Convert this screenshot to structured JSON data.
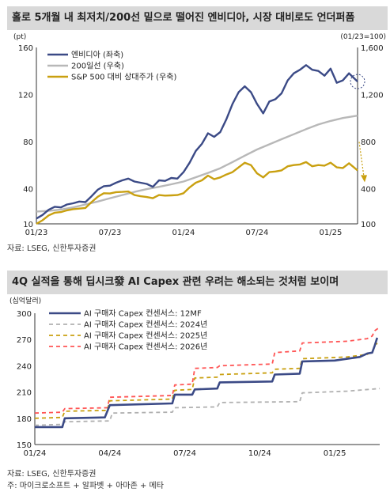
{
  "chart_data": [
    {
      "type": "line",
      "title": "홀로 5개월 내 최저치/200선 밑으로 떨어진 엔비디아, 시장 대비로도 언더퍼폼",
      "ylabel_left": "(pt)",
      "ylabel_right": "(01/23=100)",
      "left_ticks": [
        "160",
        "120",
        "80",
        "40",
        "10"
      ],
      "left_tick_values": [
        160,
        120,
        80,
        40,
        10
      ],
      "right_ticks": [
        "1,600",
        "1,200",
        "800",
        "400",
        "100"
      ],
      "x_ticks": [
        "01/23",
        "07/23",
        "01/24",
        "07/24",
        "01/25"
      ],
      "x_tick_values": [
        0,
        6,
        12,
        18,
        24
      ],
      "x_range_months": [
        0,
        26.2
      ],
      "legend_position": "top-left",
      "series": [
        {
          "name": "엔비디아 (좌축)",
          "color": "#3b4a86",
          "axis": "left",
          "points": [
            [
              0,
              14.5
            ],
            [
              0.5,
              17.5
            ],
            [
              1,
              22
            ],
            [
              1.5,
              24.5
            ],
            [
              2,
              24
            ],
            [
              2.5,
              26.5
            ],
            [
              3,
              27.5
            ],
            [
              3.5,
              29
            ],
            [
              4,
              28.5
            ],
            [
              4.5,
              33.5
            ],
            [
              5,
              39
            ],
            [
              5.5,
              42
            ],
            [
              6,
              42.5
            ],
            [
              6.5,
              45
            ],
            [
              7,
              47
            ],
            [
              7.5,
              48.5
            ],
            [
              8,
              46
            ],
            [
              8.5,
              45
            ],
            [
              9,
              44
            ],
            [
              9.5,
              41.5
            ],
            [
              10,
              47
            ],
            [
              10.5,
              46.5
            ],
            [
              11,
              49
            ],
            [
              11.5,
              48.5
            ],
            [
              12,
              54
            ],
            [
              12.5,
              62
            ],
            [
              13,
              72
            ],
            [
              13.5,
              78
            ],
            [
              14,
              87
            ],
            [
              14.5,
              84
            ],
            [
              15,
              88
            ],
            [
              15.5,
              99
            ],
            [
              16,
              112
            ],
            [
              16.5,
              122
            ],
            [
              17,
              127
            ],
            [
              17.5,
              122
            ],
            [
              18,
              112
            ],
            [
              18.5,
              104
            ],
            [
              19,
              114
            ],
            [
              19.5,
              116
            ],
            [
              20,
              121
            ],
            [
              20.5,
              132
            ],
            [
              21,
              138
            ],
            [
              21.5,
              141
            ],
            [
              22,
              145
            ],
            [
              22.5,
              141
            ],
            [
              23,
              140
            ],
            [
              23.5,
              136
            ],
            [
              24,
              142
            ],
            [
              24.5,
              130
            ],
            [
              25,
              132
            ],
            [
              25.5,
              138
            ],
            [
              26.2,
              131
            ]
          ]
        },
        {
          "name": "200일선 (우축)",
          "color": "#b8b8b8",
          "axis": "right",
          "points": [
            [
              0,
              205
            ],
            [
              1,
              210
            ],
            [
              2,
              222
            ],
            [
              3,
              240
            ],
            [
              4,
              265
            ],
            [
              5,
              290
            ],
            [
              6,
              318
            ],
            [
              7,
              345
            ],
            [
              8,
              372
            ],
            [
              9,
              395
            ],
            [
              10,
              415
            ],
            [
              11,
              436
            ],
            [
              12,
              460
            ],
            [
              13,
              496
            ],
            [
              14,
              533
            ],
            [
              15,
              573
            ],
            [
              16,
              625
            ],
            [
              17,
              680
            ],
            [
              18,
              732
            ],
            [
              19,
              776
            ],
            [
              20,
              820
            ],
            [
              21,
              862
            ],
            [
              22,
              905
            ],
            [
              23,
              945
            ],
            [
              24,
              975
            ],
            [
              25,
              1000
            ],
            [
              26.2,
              1020
            ]
          ]
        },
        {
          "name": "S&P 500 대비 상대주가 (우축)",
          "color": "#c9a010",
          "axis": "right",
          "points": [
            [
              0,
              100
            ],
            [
              0.5,
              130
            ],
            [
              1,
              172
            ],
            [
              1.5,
              195
            ],
            [
              2,
              200
            ],
            [
              2.5,
              215
            ],
            [
              3,
              225
            ],
            [
              3.5,
              230
            ],
            [
              4,
              235
            ],
            [
              4.5,
              285
            ],
            [
              5,
              330
            ],
            [
              5.5,
              360
            ],
            [
              6,
              358
            ],
            [
              6.5,
              370
            ],
            [
              7,
              372
            ],
            [
              7.5,
              375
            ],
            [
              8,
              345
            ],
            [
              8.5,
              335
            ],
            [
              9,
              328
            ],
            [
              9.5,
              318
            ],
            [
              10,
              345
            ],
            [
              10.5,
              340
            ],
            [
              11,
              342
            ],
            [
              11.5,
              345
            ],
            [
              12,
              360
            ],
            [
              12.5,
              410
            ],
            [
              13,
              450
            ],
            [
              13.5,
              470
            ],
            [
              14,
              510
            ],
            [
              14.5,
              480
            ],
            [
              15,
              495
            ],
            [
              15.5,
              520
            ],
            [
              16,
              540
            ],
            [
              16.5,
              580
            ],
            [
              17,
              620
            ],
            [
              17.5,
              600
            ],
            [
              18,
              530
            ],
            [
              18.5,
              495
            ],
            [
              19,
              540
            ],
            [
              19.5,
              545
            ],
            [
              20,
              555
            ],
            [
              20.5,
              590
            ],
            [
              21,
              600
            ],
            [
              21.5,
              605
            ],
            [
              22,
              625
            ],
            [
              22.5,
              590
            ],
            [
              23,
              600
            ],
            [
              23.5,
              595
            ],
            [
              24,
              620
            ],
            [
              24.5,
              580
            ],
            [
              25,
              575
            ],
            [
              25.5,
              615
            ],
            [
              26.2,
              555
            ]
          ]
        }
      ]
    },
    {
      "type": "line",
      "title": "4Q 실적을 통해 딥시크發 AI Capex 관련 우려는 해소되는 것처럼 보이며",
      "ylabel": "(십억달러)",
      "ylim": [
        150,
        300
      ],
      "y_ticks": [
        "300",
        "270",
        "240",
        "210",
        "180",
        "150"
      ],
      "y_tick_values": [
        300,
        270,
        240,
        210,
        180,
        150
      ],
      "x_ticks": [
        "01/24",
        "04/24",
        "07/24",
        "10/24",
        "01/25"
      ],
      "x_tick_values": [
        0,
        3,
        6,
        9,
        12
      ],
      "x_range_months": [
        0,
        13.8
      ],
      "legend_position": "top-left",
      "series": [
        {
          "name": "AI 구매자 Capex 컨센서스: 12MF",
          "color": "#3b4a86",
          "dash": "",
          "points": [
            [
              0,
              170
            ],
            [
              1.1,
              170
            ],
            [
              1.2,
              180
            ],
            [
              2.8,
              181
            ],
            [
              3,
              195
            ],
            [
              5.5,
              197
            ],
            [
              5.6,
              207
            ],
            [
              6.3,
              207
            ],
            [
              6.4,
              213
            ],
            [
              7.3,
              214
            ],
            [
              7.4,
              221
            ],
            [
              9.5,
              222
            ],
            [
              9.6,
              230
            ],
            [
              10.6,
              231
            ],
            [
              10.7,
              245
            ],
            [
              12,
              246
            ],
            [
              13,
              250
            ],
            [
              13.3,
              254
            ],
            [
              13.5,
              255
            ],
            [
              13.6,
              263
            ],
            [
              13.7,
              272
            ]
          ]
        },
        {
          "name": "AI 구매자 Capex 컨센서스: 2024년",
          "color": "#b0b0b0",
          "dash": "5,4",
          "points": [
            [
              0,
              172
            ],
            [
              1.1,
              173
            ],
            [
              1.2,
              176
            ],
            [
              3,
              177
            ],
            [
              3.1,
              186
            ],
            [
              5.5,
              187
            ],
            [
              5.6,
              192
            ],
            [
              7.3,
              193
            ],
            [
              7.4,
              198
            ],
            [
              10.6,
              199
            ],
            [
              10.7,
              209
            ],
            [
              12.5,
              211
            ],
            [
              13.8,
              214
            ]
          ]
        },
        {
          "name": "AI 구매자 Capex 컨센서스: 2025년",
          "color": "#c9a010",
          "dash": "5,4",
          "points": [
            [
              0,
              180
            ],
            [
              1.1,
              181
            ],
            [
              1.2,
              188
            ],
            [
              2.9,
              189
            ],
            [
              3,
              200
            ],
            [
              5.5,
              202
            ],
            [
              5.6,
              212
            ],
            [
              6.3,
              213
            ],
            [
              6.4,
              226
            ],
            [
              7.3,
              227
            ],
            [
              7.4,
              230
            ],
            [
              9.5,
              232
            ],
            [
              9.6,
              236
            ],
            [
              10.6,
              237
            ],
            [
              10.7,
              248
            ],
            [
              12.5,
              250
            ],
            [
              13.3,
              253
            ],
            [
              13.5,
              256
            ],
            [
              13.6,
              262
            ],
            [
              13.7,
              266
            ]
          ]
        },
        {
          "name": "AI 구매자 Capex 컨센서스: 2026년",
          "color": "#ff5555",
          "dash": "5,4",
          "points": [
            [
              0,
              186
            ],
            [
              1.1,
              187
            ],
            [
              1.2,
              191
            ],
            [
              2.9,
              192
            ],
            [
              3,
              204
            ],
            [
              5.5,
              206
            ],
            [
              5.6,
              218
            ],
            [
              6.3,
              219
            ],
            [
              6.4,
              237
            ],
            [
              7.3,
              238
            ],
            [
              7.4,
              240
            ],
            [
              9.5,
              242
            ],
            [
              9.6,
              255
            ],
            [
              10.6,
              257
            ],
            [
              10.7,
              266
            ],
            [
              12.5,
              268
            ],
            [
              13.3,
              271
            ],
            [
              13.5,
              274
            ],
            [
              13.6,
              280
            ],
            [
              13.8,
              284
            ]
          ]
        }
      ]
    }
  ],
  "source1": "자료: LSEG, 신한투자증권",
  "source2": "자료: LSEG, 신한투자증권",
  "note2": "주: 마이크로소프트 + 알파벳 + 아마존 + 메타"
}
